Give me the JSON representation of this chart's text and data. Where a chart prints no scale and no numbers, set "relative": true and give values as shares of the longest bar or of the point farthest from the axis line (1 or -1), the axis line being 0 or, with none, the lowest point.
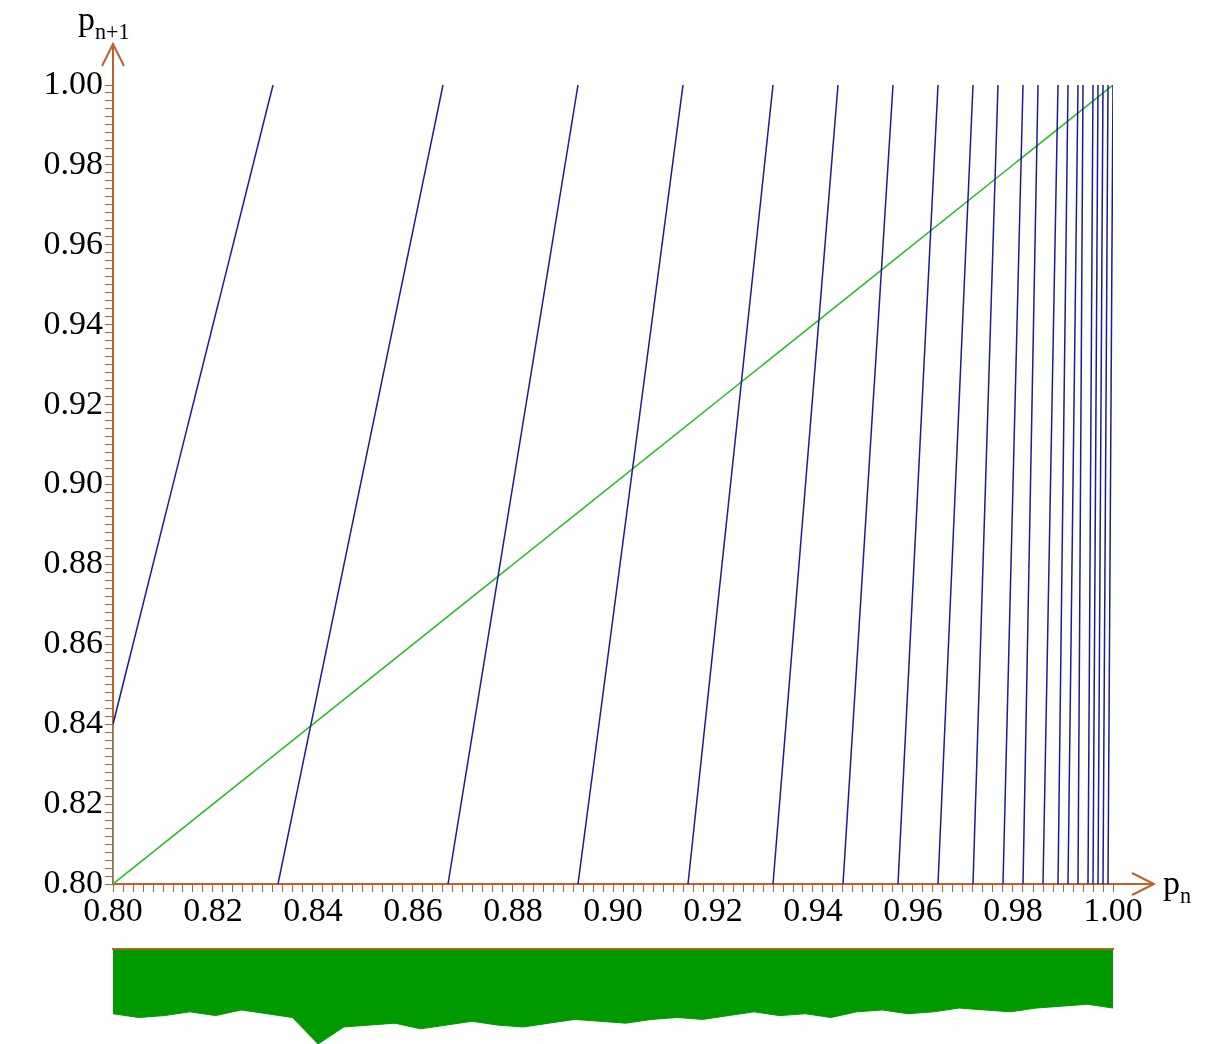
{
  "chart_data": [
    {
      "type": "line",
      "xlabel": "p$_{n}$",
      "ylabel": "p$_{n+1}$",
      "marker": "none",
      "line_style": "solid",
      "xlim": [
        0.8,
        1.0
      ],
      "ylim": [
        0.8,
        1.0
      ],
      "xticks": [
        {
          "value": 0.8,
          "label": "0.80"
        },
        {
          "value": 0.802,
          "label": null
        },
        {
          "value": 0.804,
          "label": null
        },
        {
          "value": 0.806,
          "label": null
        },
        {
          "value": 0.808,
          "label": null
        },
        {
          "value": 0.81,
          "label": null
        },
        {
          "value": 0.812,
          "label": null
        },
        {
          "value": 0.814,
          "label": null
        },
        {
          "value": 0.816,
          "label": null
        },
        {
          "value": 0.818,
          "label": null
        },
        {
          "value": 0.82,
          "label": "0.82"
        },
        {
          "value": 0.822,
          "label": null
        },
        {
          "value": 0.824,
          "label": null
        },
        {
          "value": 0.826,
          "label": null
        },
        {
          "value": 0.828,
          "label": null
        },
        {
          "value": 0.83,
          "label": null
        },
        {
          "value": 0.832,
          "label": null
        },
        {
          "value": 0.834,
          "label": null
        },
        {
          "value": 0.836,
          "label": null
        },
        {
          "value": 0.838,
          "label": null
        },
        {
          "value": 0.84,
          "label": "0.84"
        },
        {
          "value": 0.842,
          "label": null
        },
        {
          "value": 0.844,
          "label": null
        },
        {
          "value": 0.846,
          "label": null
        },
        {
          "value": 0.848,
          "label": null
        },
        {
          "value": 0.85,
          "label": null
        },
        {
          "value": 0.852,
          "label": null
        },
        {
          "value": 0.854,
          "label": null
        },
        {
          "value": 0.856,
          "label": null
        },
        {
          "value": 0.858,
          "label": null
        },
        {
          "value": 0.86,
          "label": "0.86"
        },
        {
          "value": 0.862,
          "label": null
        },
        {
          "value": 0.864,
          "label": null
        },
        {
          "value": 0.866,
          "label": null
        },
        {
          "value": 0.868,
          "label": null
        },
        {
          "value": 0.87,
          "label": null
        },
        {
          "value": 0.872,
          "label": null
        },
        {
          "value": 0.874,
          "label": null
        },
        {
          "value": 0.876,
          "label": null
        },
        {
          "value": 0.878,
          "label": null
        },
        {
          "value": 0.88,
          "label": "0.88"
        },
        {
          "value": 0.882,
          "label": null
        },
        {
          "value": 0.884,
          "label": null
        },
        {
          "value": 0.886,
          "label": null
        },
        {
          "value": 0.888,
          "label": null
        },
        {
          "value": 0.89,
          "label": null
        },
        {
          "value": 0.892,
          "label": null
        },
        {
          "value": 0.894,
          "label": null
        },
        {
          "value": 0.896,
          "label": null
        },
        {
          "value": 0.898,
          "label": null
        },
        {
          "value": 0.9,
          "label": "0.90"
        },
        {
          "value": 0.902,
          "label": null
        },
        {
          "value": 0.904,
          "label": null
        },
        {
          "value": 0.906,
          "label": null
        },
        {
          "value": 0.908,
          "label": null
        },
        {
          "value": 0.91,
          "label": null
        },
        {
          "value": 0.912,
          "label": null
        },
        {
          "value": 0.914,
          "label": null
        },
        {
          "value": 0.916,
          "label": null
        },
        {
          "value": 0.918,
          "label": null
        },
        {
          "value": 0.92,
          "label": "0.92"
        },
        {
          "value": 0.922,
          "label": null
        },
        {
          "value": 0.924,
          "label": null
        },
        {
          "value": 0.926,
          "label": null
        },
        {
          "value": 0.928,
          "label": null
        },
        {
          "value": 0.93,
          "label": null
        },
        {
          "value": 0.932,
          "label": null
        },
        {
          "value": 0.934,
          "label": null
        },
        {
          "value": 0.936,
          "label": null
        },
        {
          "value": 0.938,
          "label": null
        },
        {
          "value": 0.94,
          "label": "0.94"
        },
        {
          "value": 0.942,
          "label": null
        },
        {
          "value": 0.944,
          "label": null
        },
        {
          "value": 0.946,
          "label": null
        },
        {
          "value": 0.948,
          "label": null
        },
        {
          "value": 0.95,
          "label": null
        },
        {
          "value": 0.952,
          "label": null
        },
        {
          "value": 0.954,
          "label": null
        },
        {
          "value": 0.956,
          "label": null
        },
        {
          "value": 0.958,
          "label": null
        },
        {
          "value": 0.96,
          "label": "0.96"
        },
        {
          "value": 0.962,
          "label": null
        },
        {
          "value": 0.964,
          "label": null
        },
        {
          "value": 0.966,
          "label": null
        },
        {
          "value": 0.968,
          "label": null
        },
        {
          "value": 0.97,
          "label": null
        },
        {
          "value": 0.972,
          "label": null
        },
        {
          "value": 0.974,
          "label": null
        },
        {
          "value": 0.976,
          "label": null
        },
        {
          "value": 0.978,
          "label": null
        },
        {
          "value": 0.98,
          "label": "0.98"
        },
        {
          "value": 0.982,
          "label": null
        },
        {
          "value": 0.984,
          "label": null
        },
        {
          "value": 0.986,
          "label": null
        },
        {
          "value": 0.988,
          "label": null
        },
        {
          "value": 0.99,
          "label": null
        },
        {
          "value": 0.992,
          "label": null
        },
        {
          "value": 0.994,
          "label": null
        },
        {
          "value": 0.996,
          "label": null
        },
        {
          "value": 0.998,
          "label": null
        },
        {
          "value": 1.0,
          "label": "1.00"
        }
      ],
      "yticks": [
        {
          "value": 0.8,
          "label": "0.80"
        },
        {
          "value": 0.802,
          "label": null
        },
        {
          "value": 0.804,
          "label": null
        },
        {
          "value": 0.806,
          "label": null
        },
        {
          "value": 0.808,
          "label": null
        },
        {
          "value": 0.81,
          "label": null
        },
        {
          "value": 0.812,
          "label": null
        },
        {
          "value": 0.814,
          "label": null
        },
        {
          "value": 0.816,
          "label": null
        },
        {
          "value": 0.818,
          "label": null
        },
        {
          "value": 0.82,
          "label": "0.82"
        },
        {
          "value": 0.822,
          "label": null
        },
        {
          "value": 0.824,
          "label": null
        },
        {
          "value": 0.826,
          "label": null
        },
        {
          "value": 0.828,
          "label": null
        },
        {
          "value": 0.83,
          "label": null
        },
        {
          "value": 0.832,
          "label": null
        },
        {
          "value": 0.834,
          "label": null
        },
        {
          "value": 0.836,
          "label": null
        },
        {
          "value": 0.838,
          "label": null
        },
        {
          "value": 0.84,
          "label": "0.84"
        },
        {
          "value": 0.842,
          "label": null
        },
        {
          "value": 0.844,
          "label": null
        },
        {
          "value": 0.846,
          "label": null
        },
        {
          "value": 0.848,
          "label": null
        },
        {
          "value": 0.85,
          "label": null
        },
        {
          "value": 0.852,
          "label": null
        },
        {
          "value": 0.854,
          "label": null
        },
        {
          "value": 0.856,
          "label": null
        },
        {
          "value": 0.858,
          "label": null
        },
        {
          "value": 0.86,
          "label": "0.86"
        },
        {
          "value": 0.862,
          "label": null
        },
        {
          "value": 0.864,
          "label": null
        },
        {
          "value": 0.866,
          "label": null
        },
        {
          "value": 0.868,
          "label": null
        },
        {
          "value": 0.87,
          "label": null
        },
        {
          "value": 0.872,
          "label": null
        },
        {
          "value": 0.874,
          "label": null
        },
        {
          "value": 0.876,
          "label": null
        },
        {
          "value": 0.878,
          "label": null
        },
        {
          "value": 0.88,
          "label": "0.88"
        },
        {
          "value": 0.882,
          "label": null
        },
        {
          "value": 0.884,
          "label": null
        },
        {
          "value": 0.886,
          "label": null
        },
        {
          "value": 0.888,
          "label": null
        },
        {
          "value": 0.89,
          "label": null
        },
        {
          "value": 0.892,
          "label": null
        },
        {
          "value": 0.894,
          "label": null
        },
        {
          "value": 0.896,
          "label": null
        },
        {
          "value": 0.898,
          "label": null
        },
        {
          "value": 0.9,
          "label": "0.90"
        },
        {
          "value": 0.902,
          "label": null
        },
        {
          "value": 0.904,
          "label": null
        },
        {
          "value": 0.906,
          "label": null
        },
        {
          "value": 0.908,
          "label": null
        },
        {
          "value": 0.91,
          "label": null
        },
        {
          "value": 0.912,
          "label": null
        },
        {
          "value": 0.914,
          "label": null
        },
        {
          "value": 0.916,
          "label": null
        },
        {
          "value": 0.918,
          "label": null
        },
        {
          "value": 0.92,
          "label": "0.92"
        },
        {
          "value": 0.922,
          "label": null
        },
        {
          "value": 0.924,
          "label": null
        },
        {
          "value": 0.926,
          "label": null
        },
        {
          "value": 0.928,
          "label": null
        },
        {
          "value": 0.93,
          "label": null
        },
        {
          "value": 0.932,
          "label": null
        },
        {
          "value": 0.934,
          "label": null
        },
        {
          "value": 0.936,
          "label": null
        },
        {
          "value": 0.938,
          "label": null
        },
        {
          "value": 0.94,
          "label": "0.94"
        },
        {
          "value": 0.942,
          "label": null
        },
        {
          "value": 0.944,
          "label": null
        },
        {
          "value": 0.946,
          "label": null
        },
        {
          "value": 0.948,
          "label": null
        },
        {
          "value": 0.95,
          "label": null
        },
        {
          "value": 0.952,
          "label": null
        },
        {
          "value": 0.954,
          "label": null
        },
        {
          "value": 0.956,
          "label": null
        },
        {
          "value": 0.958,
          "label": null
        },
        {
          "value": 0.96,
          "label": "0.96"
        },
        {
          "value": 0.962,
          "label": null
        },
        {
          "value": 0.964,
          "label": null
        },
        {
          "value": 0.966,
          "label": null
        },
        {
          "value": 0.968,
          "label": null
        },
        {
          "value": 0.97,
          "label": null
        },
        {
          "value": 0.972,
          "label": null
        },
        {
          "value": 0.974,
          "label": null
        },
        {
          "value": 0.976,
          "label": null
        },
        {
          "value": 0.978,
          "label": null
        },
        {
          "value": 0.98,
          "label": "0.98"
        },
        {
          "value": 0.982,
          "label": null
        },
        {
          "value": 0.984,
          "label": null
        },
        {
          "value": 0.986,
          "label": null
        },
        {
          "value": 0.988,
          "label": null
        },
        {
          "value": 0.99,
          "label": null
        },
        {
          "value": 0.992,
          "label": null
        },
        {
          "value": 0.994,
          "label": null
        },
        {
          "value": 0.996,
          "label": null
        },
        {
          "value": 0.998,
          "label": null
        },
        {
          "value": 1.0,
          "label": "1.00"
        }
      ],
      "series": [
        {
          "type": "line",
          "color": "#40c0b0",
          "x": [
            0.8,
            0.8
          ],
          "values": [
            0.8,
            0.84
          ]
        },
        {
          "type": "line",
          "color": "#1c1c96",
          "x": [
            0.8,
            0.832
          ],
          "values": [
            0.84,
            1.0
          ]
        },
        {
          "type": "line",
          "color": "#1c1c96",
          "x": [
            0.833,
            0.866
          ],
          "values": [
            0.8,
            1.0
          ]
        },
        {
          "type": "line",
          "color": "#1c1c96",
          "x": [
            0.867,
            0.893
          ],
          "values": [
            0.8,
            1.0
          ]
        },
        {
          "type": "line",
          "color": "#1c1c96",
          "x": [
            0.893,
            0.914
          ],
          "values": [
            0.8,
            1.0
          ]
        },
        {
          "type": "line",
          "color": "#1c1c96",
          "x": [
            0.915,
            0.932
          ],
          "values": [
            0.8,
            1.0
          ]
        },
        {
          "type": "line",
          "color": "#1c1c96",
          "x": [
            0.932,
            0.945
          ],
          "values": [
            0.8,
            1.0
          ]
        },
        {
          "type": "line",
          "color": "#1c1c96",
          "x": [
            0.946,
            0.956
          ],
          "values": [
            0.8,
            1.0
          ]
        },
        {
          "type": "line",
          "color": "#1c1c96",
          "x": [
            0.957,
            0.965
          ],
          "values": [
            0.8,
            1.0
          ]
        },
        {
          "type": "line",
          "color": "#1c1c96",
          "x": [
            0.965,
            0.972
          ],
          "values": [
            0.8,
            1.0
          ]
        },
        {
          "type": "line",
          "color": "#1c1c96",
          "x": [
            0.972,
            0.977
          ],
          "values": [
            0.8,
            1.0
          ]
        },
        {
          "type": "line",
          "color": "#1c1c96",
          "x": [
            0.978,
            0.982
          ],
          "values": [
            0.8,
            1.0
          ]
        },
        {
          "type": "line",
          "color": "#1c1c96",
          "x": [
            0.982,
            0.985
          ],
          "values": [
            0.8,
            1.0
          ]
        },
        {
          "type": "line",
          "color": "#1c1c96",
          "x": [
            0.986,
            0.989
          ],
          "values": [
            0.8,
            1.0
          ]
        },
        {
          "type": "line",
          "color": "#1c1c96",
          "x": [
            0.989,
            0.991
          ],
          "values": [
            0.8,
            1.0
          ]
        },
        {
          "type": "line",
          "color": "#1c1c96",
          "x": [
            0.991,
            0.993
          ],
          "values": [
            0.8,
            1.0
          ]
        },
        {
          "type": "line",
          "color": "#1c1c96",
          "x": [
            0.993,
            0.994
          ],
          "values": [
            0.8,
            1.0
          ]
        },
        {
          "type": "line",
          "color": "#1c1c96",
          "x": [
            0.995,
            0.996
          ],
          "values": [
            0.8,
            1.0
          ]
        },
        {
          "type": "line",
          "color": "#1c1c96",
          "x": [
            0.996,
            0.997
          ],
          "values": [
            0.8,
            1.0
          ]
        },
        {
          "type": "line",
          "color": "#1c1c96",
          "x": [
            0.997,
            0.998
          ],
          "values": [
            0.8,
            1.0
          ]
        },
        {
          "type": "line",
          "color": "#1c1c96",
          "x": [
            0.998,
            0.999
          ],
          "values": [
            0.8,
            1.0
          ]
        },
        {
          "type": "line",
          "color": "#1c1c96",
          "x": [
            0.999,
            1.0
          ],
          "values": [
            0.8,
            1.0
          ]
        },
        {
          "type": "line",
          "color": "#22bb22",
          "x": [
            0.8,
            1.0
          ],
          "values": [
            0.8,
            1.0
          ]
        }
      ]
    },
    {
      "type": "area",
      "relative": true,
      "color": "#009900",
      "categories": [
        null,
        null,
        null,
        null,
        null,
        null,
        null,
        null,
        null,
        null,
        null,
        null,
        null,
        null,
        null,
        null,
        null,
        null,
        null,
        null,
        null,
        null,
        null,
        null,
        null,
        null,
        null,
        null,
        null,
        null,
        null,
        null,
        null,
        null,
        null,
        null,
        null,
        null,
        null,
        null
      ],
      "values": [
        -0.68,
        -0.72,
        -0.7,
        -0.66,
        -0.7,
        -0.64,
        -0.68,
        -0.72,
        -1,
        -0.82,
        -0.8,
        -0.78,
        -0.84,
        -0.8,
        -0.76,
        -0.8,
        -0.82,
        -0.78,
        -0.74,
        -0.76,
        -0.78,
        -0.74,
        -0.72,
        -0.74,
        -0.7,
        -0.66,
        -0.7,
        -0.68,
        -0.72,
        -0.66,
        -0.64,
        -0.68,
        -0.66,
        -0.62,
        -0.64,
        -0.66,
        -0.62,
        -0.6,
        -0.58,
        -0.62
      ]
    }
  ]
}
